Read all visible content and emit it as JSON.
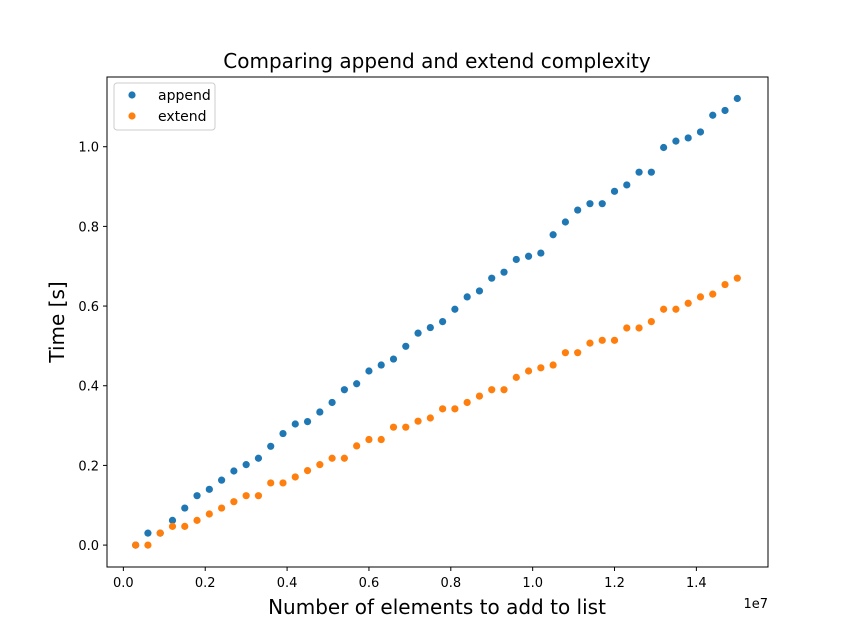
{
  "chart_data": {
    "type": "scatter",
    "title": "Comparing append and extend complexity",
    "xlabel": "Number of elements to add to list",
    "ylabel": "Time [s]",
    "x_offset_label": "1e7",
    "xlim": [
      -400000,
      15750000
    ],
    "ylim": [
      -0.055,
      1.175
    ],
    "x_ticks": [
      0,
      2000000,
      4000000,
      6000000,
      8000000,
      10000000,
      12000000,
      14000000
    ],
    "x_tick_labels": [
      "0.0",
      "0.2",
      "0.4",
      "0.6",
      "0.8",
      "1.0",
      "1.2",
      "1.4"
    ],
    "y_ticks": [
      0.0,
      0.2,
      0.4,
      0.6,
      0.8,
      1.0
    ],
    "y_tick_labels": [
      "0.0",
      "0.2",
      "0.4",
      "0.6",
      "0.8",
      "1.0"
    ],
    "grid": false,
    "legend_position": "top-left",
    "x": [
      300000,
      600000,
      900000,
      1200000,
      1500000,
      1800000,
      2100000,
      2400000,
      2700000,
      3000000,
      3300000,
      3600000,
      3900000,
      4200000,
      4500000,
      4800000,
      5100000,
      5400000,
      5700000,
      6000000,
      6300000,
      6600000,
      6900000,
      7200000,
      7500000,
      7800000,
      8100000,
      8400000,
      8700000,
      9000000,
      9300000,
      9600000,
      9900000,
      10200000,
      10500000,
      10800000,
      11100000,
      11400000,
      11700000,
      12000000,
      12300000,
      12600000,
      12900000,
      13200000,
      13500000,
      13800000,
      14100000,
      14400000,
      14700000,
      15000000
    ],
    "series": [
      {
        "name": "append",
        "color": "#1f77b4",
        "values": [
          0.0,
          0.03,
          0.03,
          0.062,
          0.093,
          0.124,
          0.14,
          0.163,
          0.186,
          0.202,
          0.218,
          0.248,
          0.28,
          0.304,
          0.31,
          0.334,
          0.358,
          0.39,
          0.405,
          0.437,
          0.452,
          0.467,
          0.499,
          0.532,
          0.546,
          0.561,
          0.592,
          0.623,
          0.638,
          0.67,
          0.685,
          0.717,
          0.725,
          0.733,
          0.779,
          0.811,
          0.841,
          0.857,
          0.857,
          0.888,
          0.904,
          0.936,
          0.936,
          0.998,
          1.014,
          1.022,
          1.037,
          1.079,
          1.091,
          1.121
        ]
      },
      {
        "name": "extend",
        "color": "#ff7f0e",
        "values": [
          0.0,
          0.0,
          0.03,
          0.047,
          0.047,
          0.062,
          0.078,
          0.093,
          0.109,
          0.124,
          0.124,
          0.156,
          0.156,
          0.171,
          0.187,
          0.202,
          0.218,
          0.218,
          0.249,
          0.265,
          0.265,
          0.296,
          0.296,
          0.311,
          0.319,
          0.342,
          0.342,
          0.358,
          0.374,
          0.39,
          0.39,
          0.421,
          0.437,
          0.445,
          0.452,
          0.483,
          0.483,
          0.507,
          0.514,
          0.514,
          0.545,
          0.545,
          0.561,
          0.592,
          0.592,
          0.607,
          0.623,
          0.63,
          0.654,
          0.67
        ]
      }
    ]
  }
}
